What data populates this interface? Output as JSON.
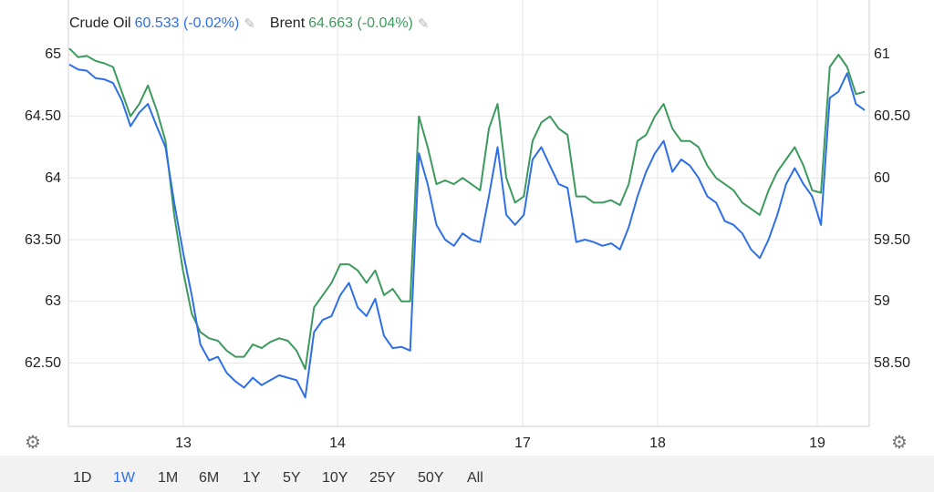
{
  "legend": {
    "crude": {
      "name": "Crude Oil",
      "value": "60.533 (-0.02%)",
      "color": "#2f6fe6"
    },
    "brent": {
      "name": "Brent",
      "value": "64.663 (-0.04%)",
      "color": "#3d9a5e"
    },
    "edit_icon": "pencil-icon"
  },
  "settings_icon": "gear-icon",
  "range_buttons": [
    "1D",
    "1W",
    "1M",
    "6M",
    "1Y",
    "5Y",
    "10Y",
    "25Y",
    "50Y",
    "All"
  ],
  "range_active": "1W",
  "chart_data": {
    "type": "line",
    "x_labels": [
      "13",
      "14",
      "17",
      "18",
      "19"
    ],
    "left_axis": {
      "ticks": [
        "65",
        "64.50",
        "64",
        "63.50",
        "63",
        "62.50"
      ],
      "range": [
        62.0,
        65.05
      ]
    },
    "right_axis": {
      "ticks": [
        "61",
        "60.50",
        "60",
        "59.50",
        "59",
        "58.50"
      ],
      "range": [
        58.0,
        61.05
      ]
    },
    "grid": true,
    "series": [
      {
        "name": "Crude Oil",
        "axis": "right",
        "color": "#2f6fe6",
        "values": [
          60.92,
          60.88,
          60.87,
          60.81,
          60.8,
          60.77,
          60.63,
          60.42,
          60.53,
          60.6,
          60.42,
          60.25,
          59.8,
          59.4,
          59.05,
          58.65,
          58.52,
          58.55,
          58.42,
          58.35,
          58.3,
          58.38,
          58.32,
          58.36,
          58.4,
          58.38,
          58.36,
          58.22,
          58.75,
          58.85,
          58.88,
          59.05,
          59.15,
          58.95,
          58.88,
          59.02,
          58.72,
          58.62,
          58.63,
          58.6,
          60.2,
          59.95,
          59.62,
          59.5,
          59.45,
          59.55,
          59.5,
          59.48,
          59.85,
          60.25,
          59.7,
          59.62,
          59.7,
          60.15,
          60.25,
          60.1,
          59.95,
          59.92,
          59.48,
          59.5,
          59.48,
          59.45,
          59.47,
          59.42,
          59.6,
          59.85,
          60.05,
          60.2,
          60.3,
          60.05,
          60.15,
          60.1,
          60.0,
          59.85,
          59.8,
          59.65,
          59.62,
          59.55,
          59.42,
          59.35,
          59.5,
          59.7,
          59.95,
          60.08,
          59.95,
          59.85,
          59.62,
          60.65,
          60.7,
          60.85,
          60.6,
          60.55
        ]
      },
      {
        "name": "Brent",
        "axis": "left",
        "color": "#3d9a5e",
        "values": [
          65.05,
          64.98,
          64.99,
          64.95,
          64.93,
          64.9,
          64.7,
          64.5,
          64.6,
          64.75,
          64.55,
          64.3,
          63.7,
          63.25,
          62.9,
          62.75,
          62.7,
          62.68,
          62.6,
          62.55,
          62.55,
          62.65,
          62.62,
          62.67,
          62.7,
          62.68,
          62.6,
          62.45,
          62.95,
          63.05,
          63.15,
          63.3,
          63.3,
          63.25,
          63.15,
          63.25,
          63.05,
          63.1,
          63.0,
          63.0,
          64.5,
          64.25,
          63.95,
          63.98,
          63.95,
          64.0,
          63.95,
          63.9,
          64.4,
          64.6,
          64.0,
          63.8,
          63.85,
          64.3,
          64.45,
          64.5,
          64.4,
          64.35,
          63.85,
          63.85,
          63.8,
          63.8,
          63.82,
          63.78,
          63.95,
          64.3,
          64.35,
          64.5,
          64.6,
          64.4,
          64.3,
          64.3,
          64.25,
          64.1,
          64.0,
          63.95,
          63.9,
          63.8,
          63.75,
          63.7,
          63.9,
          64.05,
          64.15,
          64.25,
          64.1,
          63.9,
          63.88,
          64.9,
          65.0,
          64.9,
          64.68,
          64.7
        ]
      }
    ]
  }
}
